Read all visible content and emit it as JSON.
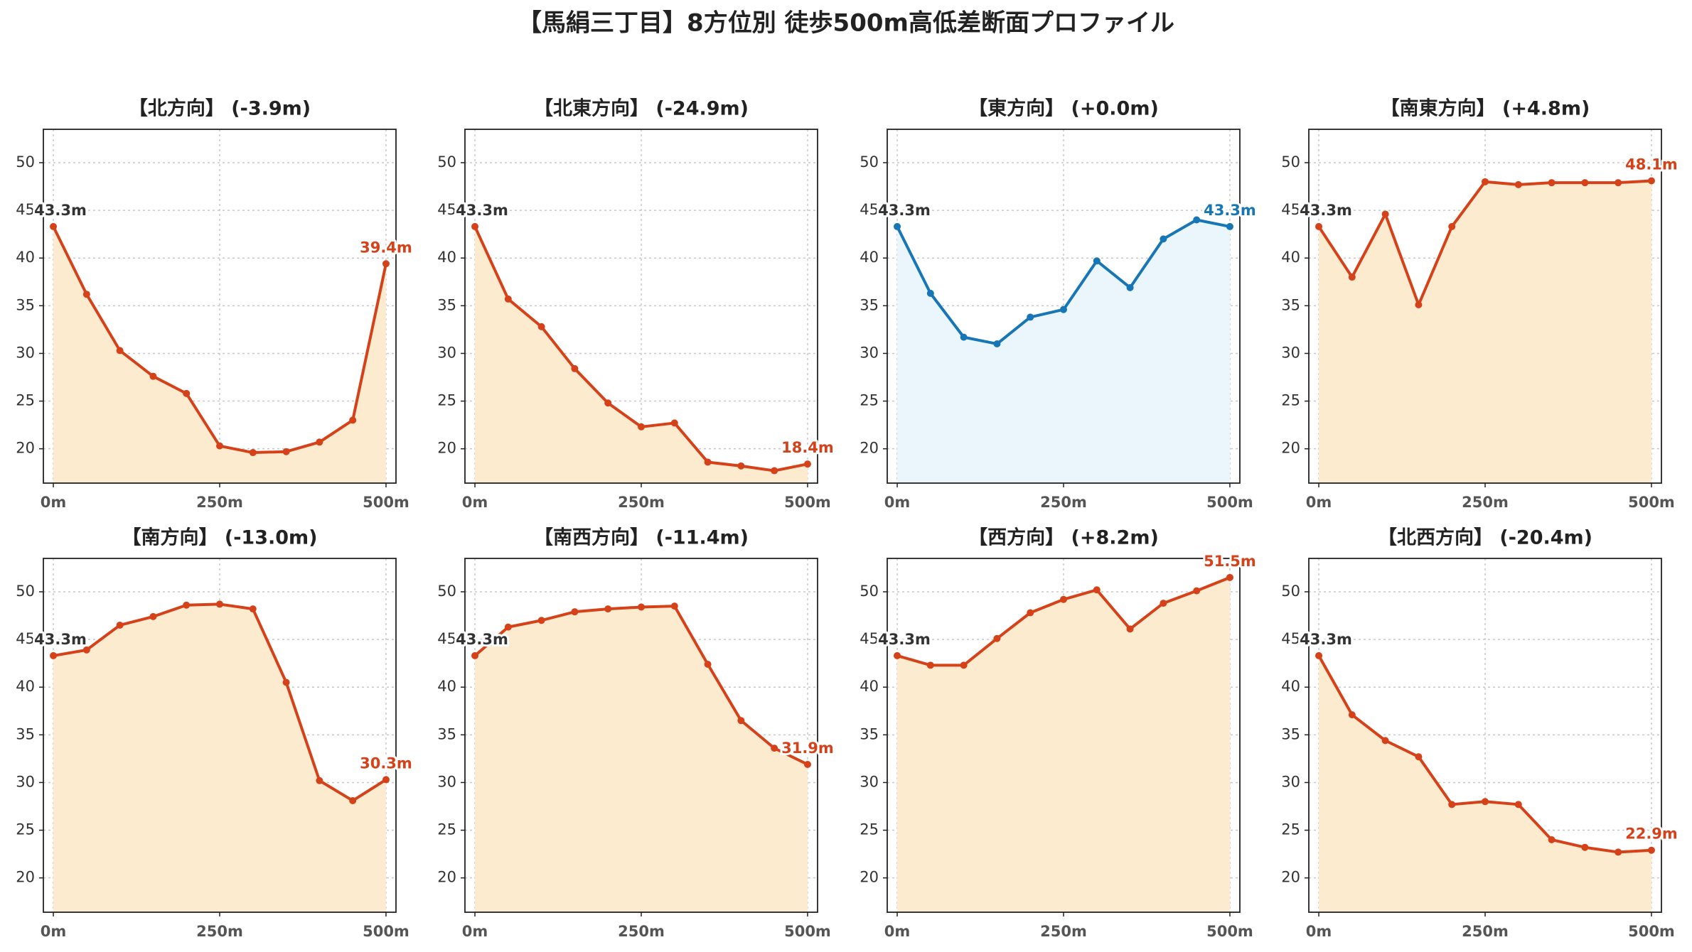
{
  "title": "【馬絹三丁目】8方位別 徒歩500m高低差断面プロファイル",
  "chart_data": [
    {
      "type": "line",
      "title": "【北方向】 (-3.9m)",
      "x": [
        0,
        50,
        100,
        150,
        200,
        250,
        300,
        350,
        400,
        450,
        500
      ],
      "values": [
        43.3,
        36.2,
        30.3,
        27.6,
        25.8,
        20.3,
        19.6,
        19.7,
        20.7,
        23.0,
        39.4
      ],
      "color": "#d5421a",
      "fill": "#fdebd0",
      "xlim": [
        -15,
        515
      ],
      "ylim": [
        16.4,
        53.5
      ],
      "xticks": [
        {
          "value": 0,
          "label": "0m"
        },
        {
          "value": 250,
          "label": "250m"
        },
        {
          "value": 500,
          "label": "500m"
        }
      ],
      "yticks": [
        20,
        25,
        30,
        35,
        40,
        45,
        50
      ],
      "grid": true,
      "annotations": [
        {
          "text": "43.3m",
          "x": 0,
          "y": 43.3,
          "color": "#333333"
        },
        {
          "text": "39.4m",
          "x": 500,
          "y": 39.4,
          "color": "#d5421a"
        }
      ]
    },
    {
      "type": "line",
      "title": "【北東方向】 (-24.9m)",
      "x": [
        0,
        50,
        100,
        150,
        200,
        250,
        300,
        350,
        400,
        450,
        500
      ],
      "values": [
        43.3,
        35.7,
        32.8,
        28.4,
        24.8,
        22.3,
        22.7,
        18.6,
        18.2,
        17.7,
        18.4
      ],
      "color": "#d5421a",
      "fill": "#fdebd0",
      "xlim": [
        -15,
        515
      ],
      "ylim": [
        16.4,
        53.5
      ],
      "xticks": [
        {
          "value": 0,
          "label": "0m"
        },
        {
          "value": 250,
          "label": "250m"
        },
        {
          "value": 500,
          "label": "500m"
        }
      ],
      "yticks": [
        20,
        25,
        30,
        35,
        40,
        45,
        50
      ],
      "grid": true,
      "annotations": [
        {
          "text": "43.3m",
          "x": 0,
          "y": 43.3,
          "color": "#333333"
        },
        {
          "text": "18.4m",
          "x": 500,
          "y": 18.4,
          "color": "#d5421a"
        }
      ]
    },
    {
      "type": "line",
      "title": "【東方向】 (+0.0m)",
      "x": [
        0,
        50,
        100,
        150,
        200,
        250,
        300,
        350,
        400,
        450,
        500
      ],
      "values": [
        43.3,
        36.3,
        31.7,
        31.0,
        33.8,
        34.6,
        39.7,
        36.9,
        42.0,
        44.0,
        43.3
      ],
      "color": "#1776b6",
      "fill": "#eaf6fb",
      "xlim": [
        -15,
        515
      ],
      "ylim": [
        16.4,
        53.5
      ],
      "xticks": [
        {
          "value": 0,
          "label": "0m"
        },
        {
          "value": 250,
          "label": "250m"
        },
        {
          "value": 500,
          "label": "500m"
        }
      ],
      "yticks": [
        20,
        25,
        30,
        35,
        40,
        45,
        50
      ],
      "grid": true,
      "annotations": [
        {
          "text": "43.3m",
          "x": 0,
          "y": 43.3,
          "color": "#333333"
        },
        {
          "text": "43.3m",
          "x": 500,
          "y": 43.3,
          "color": "#1776b6"
        }
      ]
    },
    {
      "type": "line",
      "title": "【南東方向】 (+4.8m)",
      "x": [
        0,
        50,
        100,
        150,
        200,
        250,
        300,
        350,
        400,
        450,
        500
      ],
      "values": [
        43.3,
        38.0,
        44.6,
        35.1,
        43.3,
        48.0,
        47.7,
        47.9,
        47.9,
        47.9,
        48.1
      ],
      "color": "#d5421a",
      "fill": "#fdebd0",
      "xlim": [
        -15,
        515
      ],
      "ylim": [
        16.4,
        53.5
      ],
      "xticks": [
        {
          "value": 0,
          "label": "0m"
        },
        {
          "value": 250,
          "label": "250m"
        },
        {
          "value": 500,
          "label": "500m"
        }
      ],
      "yticks": [
        20,
        25,
        30,
        35,
        40,
        45,
        50
      ],
      "grid": true,
      "annotations": [
        {
          "text": "43.3m",
          "x": 0,
          "y": 43.3,
          "color": "#333333"
        },
        {
          "text": "48.1m",
          "x": 500,
          "y": 48.1,
          "color": "#d5421a"
        }
      ]
    },
    {
      "type": "line",
      "title": "【南方向】 (-13.0m)",
      "x": [
        0,
        50,
        100,
        150,
        200,
        250,
        300,
        350,
        400,
        450,
        500
      ],
      "values": [
        43.3,
        43.9,
        46.5,
        47.4,
        48.6,
        48.7,
        48.2,
        40.5,
        30.2,
        28.1,
        30.3
      ],
      "color": "#d5421a",
      "fill": "#fdebd0",
      "xlim": [
        -15,
        515
      ],
      "ylim": [
        16.4,
        53.5
      ],
      "xticks": [
        {
          "value": 0,
          "label": "0m"
        },
        {
          "value": 250,
          "label": "250m"
        },
        {
          "value": 500,
          "label": "500m"
        }
      ],
      "yticks": [
        20,
        25,
        30,
        35,
        40,
        45,
        50
      ],
      "grid": true,
      "annotations": [
        {
          "text": "43.3m",
          "x": 0,
          "y": 43.3,
          "color": "#333333"
        },
        {
          "text": "30.3m",
          "x": 500,
          "y": 30.3,
          "color": "#d5421a"
        }
      ]
    },
    {
      "type": "line",
      "title": "【南西方向】 (-11.4m)",
      "x": [
        0,
        50,
        100,
        150,
        200,
        250,
        300,
        350,
        400,
        450,
        500
      ],
      "values": [
        43.3,
        46.3,
        47.0,
        47.9,
        48.2,
        48.4,
        48.5,
        42.4,
        36.5,
        33.6,
        31.9
      ],
      "color": "#d5421a",
      "fill": "#fdebd0",
      "xlim": [
        -15,
        515
      ],
      "ylim": [
        16.4,
        53.5
      ],
      "xticks": [
        {
          "value": 0,
          "label": "0m"
        },
        {
          "value": 250,
          "label": "250m"
        },
        {
          "value": 500,
          "label": "500m"
        }
      ],
      "yticks": [
        20,
        25,
        30,
        35,
        40,
        45,
        50
      ],
      "grid": true,
      "annotations": [
        {
          "text": "43.3m",
          "x": 0,
          "y": 43.3,
          "color": "#333333"
        },
        {
          "text": "31.9m",
          "x": 500,
          "y": 31.9,
          "color": "#d5421a"
        }
      ]
    },
    {
      "type": "line",
      "title": "【西方向】 (+8.2m)",
      "x": [
        0,
        50,
        100,
        150,
        200,
        250,
        300,
        350,
        400,
        450,
        500
      ],
      "values": [
        43.3,
        42.3,
        42.3,
        45.1,
        47.8,
        49.2,
        50.2,
        46.1,
        48.8,
        50.1,
        51.5
      ],
      "color": "#d5421a",
      "fill": "#fdebd0",
      "xlim": [
        -15,
        515
      ],
      "ylim": [
        16.4,
        53.5
      ],
      "xticks": [
        {
          "value": 0,
          "label": "0m"
        },
        {
          "value": 250,
          "label": "250m"
        },
        {
          "value": 500,
          "label": "500m"
        }
      ],
      "yticks": [
        20,
        25,
        30,
        35,
        40,
        45,
        50
      ],
      "grid": true,
      "annotations": [
        {
          "text": "43.3m",
          "x": 0,
          "y": 43.3,
          "color": "#333333"
        },
        {
          "text": "51.5m",
          "x": 500,
          "y": 51.5,
          "color": "#d5421a"
        }
      ]
    },
    {
      "type": "line",
      "title": "【北西方向】 (-20.4m)",
      "x": [
        0,
        50,
        100,
        150,
        200,
        250,
        300,
        350,
        400,
        450,
        500
      ],
      "values": [
        43.3,
        37.1,
        34.4,
        32.7,
        27.7,
        28.0,
        27.7,
        24.0,
        23.2,
        22.7,
        22.9
      ],
      "color": "#d5421a",
      "fill": "#fdebd0",
      "xlim": [
        -15,
        515
      ],
      "ylim": [
        16.4,
        53.5
      ],
      "xticks": [
        {
          "value": 0,
          "label": "0m"
        },
        {
          "value": 250,
          "label": "250m"
        },
        {
          "value": 500,
          "label": "500m"
        }
      ],
      "yticks": [
        20,
        25,
        30,
        35,
        40,
        45,
        50
      ],
      "grid": true,
      "annotations": [
        {
          "text": "43.3m",
          "x": 0,
          "y": 43.3,
          "color": "#333333"
        },
        {
          "text": "22.9m",
          "x": 500,
          "y": 22.9,
          "color": "#d5421a"
        }
      ]
    }
  ]
}
